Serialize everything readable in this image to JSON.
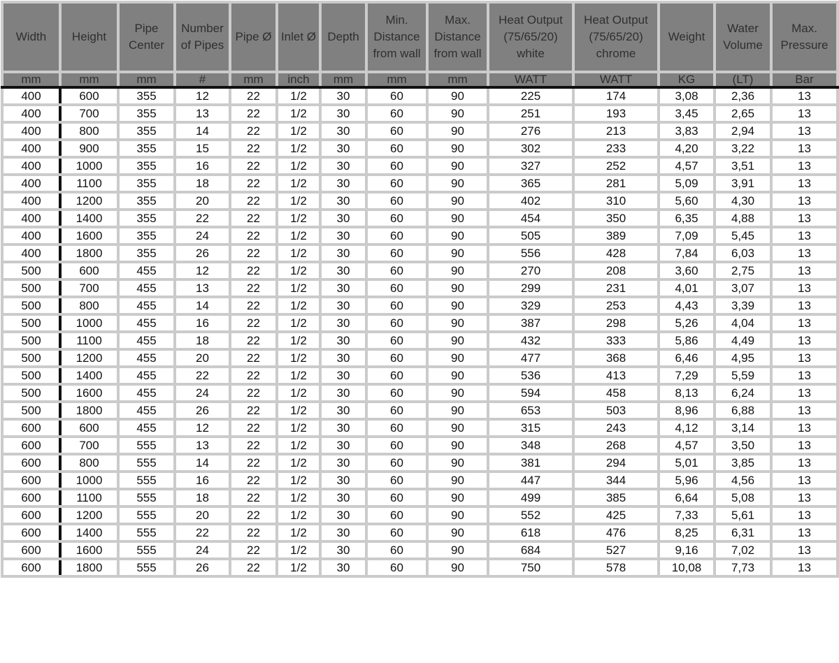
{
  "table": {
    "headers": [
      "Width",
      "Height",
      "Pipe Center",
      "Number of Pipes",
      "Pipe Ø",
      "Inlet Ø",
      "Depth",
      "Min. Distance from wall",
      "Max. Distance from wall",
      "Heat Output (75/65/20) white",
      "Heat Output (75/65/20) chrome",
      "Weight",
      "Water Volume",
      "Max. Pressure"
    ],
    "units": [
      "mm",
      "mm",
      "mm",
      "#",
      "mm",
      "inch",
      "mm",
      "mm",
      "mm",
      "WATT",
      "WATT",
      "KG",
      "(LT)",
      "Bar"
    ],
    "rows": [
      [
        "400",
        "600",
        "355",
        "12",
        "22",
        "1/2",
        "30",
        "60",
        "90",
        "225",
        "174",
        "3,08",
        "2,36",
        "13"
      ],
      [
        "400",
        "700",
        "355",
        "13",
        "22",
        "1/2",
        "30",
        "60",
        "90",
        "251",
        "193",
        "3,45",
        "2,65",
        "13"
      ],
      [
        "400",
        "800",
        "355",
        "14",
        "22",
        "1/2",
        "30",
        "60",
        "90",
        "276",
        "213",
        "3,83",
        "2,94",
        "13"
      ],
      [
        "400",
        "900",
        "355",
        "15",
        "22",
        "1/2",
        "30",
        "60",
        "90",
        "302",
        "233",
        "4,20",
        "3,22",
        "13"
      ],
      [
        "400",
        "1000",
        "355",
        "16",
        "22",
        "1/2",
        "30",
        "60",
        "90",
        "327",
        "252",
        "4,57",
        "3,51",
        "13"
      ],
      [
        "400",
        "1100",
        "355",
        "18",
        "22",
        "1/2",
        "30",
        "60",
        "90",
        "365",
        "281",
        "5,09",
        "3,91",
        "13"
      ],
      [
        "400",
        "1200",
        "355",
        "20",
        "22",
        "1/2",
        "30",
        "60",
        "90",
        "402",
        "310",
        "5,60",
        "4,30",
        "13"
      ],
      [
        "400",
        "1400",
        "355",
        "22",
        "22",
        "1/2",
        "30",
        "60",
        "90",
        "454",
        "350",
        "6,35",
        "4,88",
        "13"
      ],
      [
        "400",
        "1600",
        "355",
        "24",
        "22",
        "1/2",
        "30",
        "60",
        "90",
        "505",
        "389",
        "7,09",
        "5,45",
        "13"
      ],
      [
        "400",
        "1800",
        "355",
        "26",
        "22",
        "1/2",
        "30",
        "60",
        "90",
        "556",
        "428",
        "7,84",
        "6,03",
        "13"
      ],
      [
        "500",
        "600",
        "455",
        "12",
        "22",
        "1/2",
        "30",
        "60",
        "90",
        "270",
        "208",
        "3,60",
        "2,75",
        "13"
      ],
      [
        "500",
        "700",
        "455",
        "13",
        "22",
        "1/2",
        "30",
        "60",
        "90",
        "299",
        "231",
        "4,01",
        "3,07",
        "13"
      ],
      [
        "500",
        "800",
        "455",
        "14",
        "22",
        "1/2",
        "30",
        "60",
        "90",
        "329",
        "253",
        "4,43",
        "3,39",
        "13"
      ],
      [
        "500",
        "1000",
        "455",
        "16",
        "22",
        "1/2",
        "30",
        "60",
        "90",
        "387",
        "298",
        "5,26",
        "4,04",
        "13"
      ],
      [
        "500",
        "1100",
        "455",
        "18",
        "22",
        "1/2",
        "30",
        "60",
        "90",
        "432",
        "333",
        "5,86",
        "4,49",
        "13"
      ],
      [
        "500",
        "1200",
        "455",
        "20",
        "22",
        "1/2",
        "30",
        "60",
        "90",
        "477",
        "368",
        "6,46",
        "4,95",
        "13"
      ],
      [
        "500",
        "1400",
        "455",
        "22",
        "22",
        "1/2",
        "30",
        "60",
        "90",
        "536",
        "413",
        "7,29",
        "5,59",
        "13"
      ],
      [
        "500",
        "1600",
        "455",
        "24",
        "22",
        "1/2",
        "30",
        "60",
        "90",
        "594",
        "458",
        "8,13",
        "6,24",
        "13"
      ],
      [
        "500",
        "1800",
        "455",
        "26",
        "22",
        "1/2",
        "30",
        "60",
        "90",
        "653",
        "503",
        "8,96",
        "6,88",
        "13"
      ],
      [
        "600",
        "600",
        "455",
        "12",
        "22",
        "1/2",
        "30",
        "60",
        "90",
        "315",
        "243",
        "4,12",
        "3,14",
        "13"
      ],
      [
        "600",
        "700",
        "555",
        "13",
        "22",
        "1/2",
        "30",
        "60",
        "90",
        "348",
        "268",
        "4,57",
        "3,50",
        "13"
      ],
      [
        "600",
        "800",
        "555",
        "14",
        "22",
        "1/2",
        "30",
        "60",
        "90",
        "381",
        "294",
        "5,01",
        "3,85",
        "13"
      ],
      [
        "600",
        "1000",
        "555",
        "16",
        "22",
        "1/2",
        "30",
        "60",
        "90",
        "447",
        "344",
        "5,96",
        "4,56",
        "13"
      ],
      [
        "600",
        "1100",
        "555",
        "18",
        "22",
        "1/2",
        "30",
        "60",
        "90",
        "499",
        "385",
        "6,64",
        "5,08",
        "13"
      ],
      [
        "600",
        "1200",
        "555",
        "20",
        "22",
        "1/2",
        "30",
        "60",
        "90",
        "552",
        "425",
        "7,33",
        "5,61",
        "13"
      ],
      [
        "600",
        "1400",
        "555",
        "22",
        "22",
        "1/2",
        "30",
        "60",
        "90",
        "618",
        "476",
        "8,25",
        "6,31",
        "13"
      ],
      [
        "600",
        "1600",
        "555",
        "24",
        "22",
        "1/2",
        "30",
        "60",
        "90",
        "684",
        "527",
        "9,16",
        "7,02",
        "13"
      ],
      [
        "600",
        "1800",
        "555",
        "26",
        "22",
        "1/2",
        "30",
        "60",
        "90",
        "750",
        "578",
        "10,08",
        "7,73",
        "13"
      ]
    ]
  },
  "colors": {
    "header_bg": "#808080",
    "grid": "#cbcbcb",
    "divider": "#111111"
  }
}
